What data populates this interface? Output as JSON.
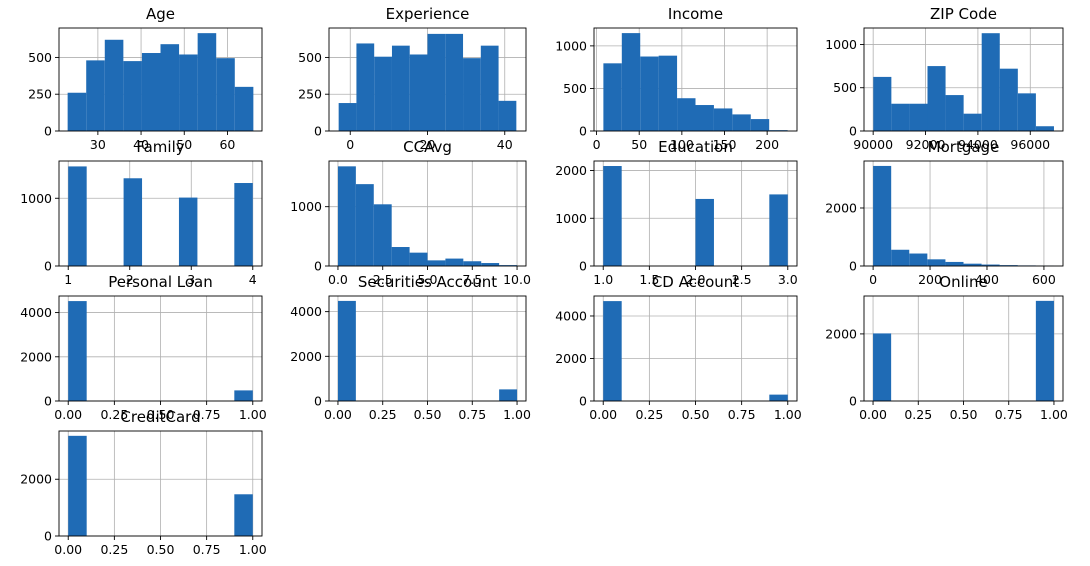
{
  "figure": {
    "bar_color": "#1f6bb5",
    "grid_color": "#b0b0b0",
    "grid": true
  },
  "chart_data": [
    {
      "type": "bar",
      "title": "Age",
      "bin_edges": [
        23,
        27.3,
        31.6,
        35.9,
        40.2,
        44.5,
        48.8,
        53.1,
        57.4,
        61.7,
        66
      ],
      "values": [
        260,
        480,
        620,
        475,
        530,
        590,
        520,
        665,
        495,
        300
      ],
      "xlim": [
        21,
        68
      ],
      "ylim": [
        0,
        700
      ],
      "xticks": [
        30,
        40,
        50,
        60
      ],
      "xtick_labels": [
        "30",
        "40",
        "50",
        "60"
      ],
      "yticks": [
        0,
        250,
        500
      ],
      "ytick_labels": [
        "0",
        "250",
        "500"
      ]
    },
    {
      "type": "bar",
      "title": "Experience",
      "bin_edges": [
        -3,
        1.6,
        6.2,
        10.8,
        15.4,
        20,
        24.6,
        29.2,
        33.8,
        38.4,
        43
      ],
      "values": [
        190,
        595,
        505,
        580,
        520,
        660,
        660,
        495,
        580,
        205
      ],
      "xlim": [
        -5.5,
        45.5
      ],
      "ylim": [
        0,
        700
      ],
      "xticks": [
        0,
        20,
        40
      ],
      "xtick_labels": [
        "0",
        "20",
        "40"
      ],
      "yticks": [
        0,
        250,
        500
      ],
      "ytick_labels": [
        "0",
        "250",
        "500"
      ]
    },
    {
      "type": "bar",
      "title": "Income",
      "bin_edges": [
        8,
        29.6,
        51.2,
        72.8,
        94.4,
        116,
        137.6,
        159.2,
        180.8,
        202.4,
        224
      ],
      "values": [
        795,
        1150,
        875,
        885,
        385,
        305,
        265,
        195,
        140,
        10
      ],
      "xlim": [
        -3,
        235
      ],
      "ylim": [
        0,
        1210
      ],
      "xticks": [
        0,
        50,
        100,
        150,
        200
      ],
      "xtick_labels": [
        "0",
        "50",
        "100",
        "150",
        "200"
      ],
      "yticks": [
        0,
        500,
        1000
      ],
      "ytick_labels": [
        "0",
        "500",
        "1000"
      ]
    },
    {
      "type": "bar",
      "title": "ZIP Code",
      "bin_edges": [
        90005,
        90695,
        91385,
        92075,
        92765,
        93455,
        94145,
        94835,
        95525,
        96215,
        96905
      ],
      "values": [
        625,
        315,
        315,
        750,
        415,
        200,
        1130,
        720,
        435,
        55
      ],
      "xlim": [
        89650,
        97250
      ],
      "ylim": [
        0,
        1190
      ],
      "xticks": [
        90000,
        92000,
        94000,
        96000
      ],
      "xtick_labels": [
        "90000",
        "92000",
        "94000",
        "96000"
      ],
      "yticks": [
        0,
        500,
        1000
      ],
      "ytick_labels": [
        "0",
        "500",
        "1000"
      ]
    },
    {
      "type": "bar",
      "title": "Family",
      "bin_edges": [
        1,
        1.3,
        1.6,
        1.9,
        2.2,
        2.5,
        2.8,
        3.1,
        3.4,
        3.7,
        4
      ],
      "values": [
        1470,
        0,
        0,
        1295,
        0,
        0,
        1010,
        0,
        0,
        1225
      ],
      "xlim": [
        0.85,
        4.15
      ],
      "ylim": [
        0,
        1550
      ],
      "xticks": [
        1,
        2,
        3,
        4
      ],
      "xtick_labels": [
        "1",
        "2",
        "3",
        "4"
      ],
      "yticks": [
        0,
        1000
      ],
      "ytick_labels": [
        "0",
        "1000"
      ]
    },
    {
      "type": "bar",
      "title": "CCAvg",
      "bin_edges": [
        0,
        1,
        2,
        3,
        4,
        5,
        6,
        7,
        8,
        9,
        10
      ],
      "values": [
        1680,
        1380,
        1040,
        320,
        225,
        95,
        125,
        80,
        50,
        15
      ],
      "xlim": [
        -0.5,
        10.5
      ],
      "ylim": [
        0,
        1770
      ],
      "xticks": [
        0,
        2.5,
        5,
        7.5,
        10
      ],
      "xtick_labels": [
        "0.0",
        "2.5",
        "5.0",
        "7.5",
        "10.0"
      ],
      "yticks": [
        0,
        1000
      ],
      "ytick_labels": [
        "0",
        "1000"
      ]
    },
    {
      "type": "bar",
      "title": "Education",
      "bin_edges": [
        1,
        1.2,
        1.4,
        1.6,
        1.8,
        2,
        2.2,
        2.4,
        2.6,
        2.8,
        3
      ],
      "values": [
        2095,
        0,
        0,
        0,
        0,
        1405,
        0,
        0,
        0,
        1500
      ],
      "xlim": [
        0.9,
        3.1
      ],
      "ylim": [
        0,
        2200
      ],
      "xticks": [
        1,
        1.5,
        2,
        2.5,
        3
      ],
      "xtick_labels": [
        "1.0",
        "1.5",
        "2.0",
        "2.5",
        "3.0"
      ],
      "yticks": [
        0,
        1000,
        2000
      ],
      "ytick_labels": [
        "0",
        "1000",
        "2000"
      ]
    },
    {
      "type": "bar",
      "title": "Mortgage",
      "bin_edges": [
        0,
        63.5,
        127,
        190.5,
        254,
        317.5,
        381,
        444.5,
        508,
        571.5,
        635
      ],
      "values": [
        3450,
        560,
        430,
        230,
        140,
        80,
        50,
        30,
        20,
        10
      ],
      "xlim": [
        -32,
        667
      ],
      "ylim": [
        0,
        3620
      ],
      "xticks": [
        0,
        200,
        400,
        600
      ],
      "xtick_labels": [
        "0",
        "200",
        "400",
        "600"
      ],
      "yticks": [
        0,
        2000
      ],
      "ytick_labels": [
        "0",
        "2000"
      ]
    },
    {
      "type": "bar",
      "title": "Personal Loan",
      "bin_edges": [
        0,
        0.1,
        0.2,
        0.3,
        0.4,
        0.5,
        0.6,
        0.7,
        0.8,
        0.9,
        1
      ],
      "values": [
        4520,
        0,
        0,
        0,
        0,
        0,
        0,
        0,
        0,
        480
      ],
      "xlim": [
        -0.05,
        1.05
      ],
      "ylim": [
        0,
        4750
      ],
      "xticks": [
        0,
        0.25,
        0.5,
        0.75,
        1
      ],
      "xtick_labels": [
        "0.00",
        "0.25",
        "0.50",
        "0.75",
        "1.00"
      ],
      "yticks": [
        0,
        2000,
        4000
      ],
      "ytick_labels": [
        "0",
        "2000",
        "4000"
      ]
    },
    {
      "type": "bar",
      "title": "Securities Account",
      "bin_edges": [
        0,
        0.1,
        0.2,
        0.3,
        0.4,
        0.5,
        0.6,
        0.7,
        0.8,
        0.9,
        1
      ],
      "values": [
        4480,
        0,
        0,
        0,
        0,
        0,
        0,
        0,
        0,
        520
      ],
      "xlim": [
        -0.05,
        1.05
      ],
      "ylim": [
        0,
        4700
      ],
      "xticks": [
        0,
        0.25,
        0.5,
        0.75,
        1
      ],
      "xtick_labels": [
        "0.00",
        "0.25",
        "0.50",
        "0.75",
        "1.00"
      ],
      "yticks": [
        0,
        2000,
        4000
      ],
      "ytick_labels": [
        "0",
        "2000",
        "4000"
      ]
    },
    {
      "type": "bar",
      "title": "CD Account",
      "bin_edges": [
        0,
        0.1,
        0.2,
        0.3,
        0.4,
        0.5,
        0.6,
        0.7,
        0.8,
        0.9,
        1
      ],
      "values": [
        4700,
        0,
        0,
        0,
        0,
        0,
        0,
        0,
        0,
        300
      ],
      "xlim": [
        -0.05,
        1.05
      ],
      "ylim": [
        0,
        4940
      ],
      "xticks": [
        0,
        0.25,
        0.5,
        0.75,
        1
      ],
      "xtick_labels": [
        "0.00",
        "0.25",
        "0.50",
        "0.75",
        "1.00"
      ],
      "yticks": [
        0,
        2000,
        4000
      ],
      "ytick_labels": [
        "0",
        "2000",
        "4000"
      ]
    },
    {
      "type": "bar",
      "title": "Online",
      "bin_edges": [
        0,
        0.1,
        0.2,
        0.3,
        0.4,
        0.5,
        0.6,
        0.7,
        0.8,
        0.9,
        1
      ],
      "values": [
        2015,
        0,
        0,
        0,
        0,
        0,
        0,
        0,
        0,
        2985
      ],
      "xlim": [
        -0.05,
        1.05
      ],
      "ylim": [
        0,
        3130
      ],
      "xticks": [
        0,
        0.25,
        0.5,
        0.75,
        1
      ],
      "xtick_labels": [
        "0.00",
        "0.25",
        "0.50",
        "0.75",
        "1.00"
      ],
      "yticks": [
        0,
        2000
      ],
      "ytick_labels": [
        "0",
        "2000"
      ]
    },
    {
      "type": "bar",
      "title": "CreditCard",
      "bin_edges": [
        0,
        0.1,
        0.2,
        0.3,
        0.4,
        0.5,
        0.6,
        0.7,
        0.8,
        0.9,
        1
      ],
      "values": [
        3530,
        0,
        0,
        0,
        0,
        0,
        0,
        0,
        0,
        1470
      ],
      "xlim": [
        -0.05,
        1.05
      ],
      "ylim": [
        0,
        3700
      ],
      "xticks": [
        0,
        0.25,
        0.5,
        0.75,
        1
      ],
      "xtick_labels": [
        "0.00",
        "0.25",
        "0.50",
        "0.75",
        "1.00"
      ],
      "yticks": [
        0,
        2000
      ],
      "ytick_labels": [
        "0",
        "2000"
      ]
    }
  ]
}
